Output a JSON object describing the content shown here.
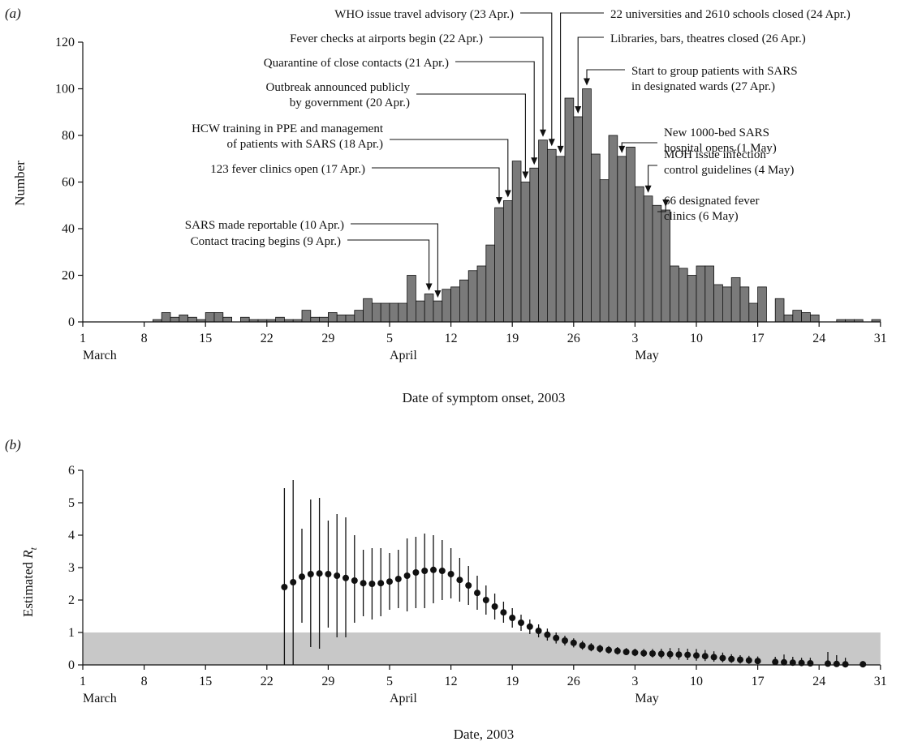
{
  "chart_data": [
    {
      "type": "bar",
      "panel_label": "(a)",
      "xlabel": "Date of symptom onset, 2003",
      "ylabel": "Number",
      "ylim": [
        0,
        120
      ],
      "yticks": [
        0,
        20,
        40,
        60,
        80,
        100,
        120
      ],
      "x_tick_labels": [
        "1",
        "8",
        "15",
        "22",
        "29",
        "5",
        "12",
        "19",
        "26",
        "3",
        "10",
        "17",
        "24",
        "31"
      ],
      "month_labels": [
        {
          "text": "March",
          "tick": 0
        },
        {
          "text": "April",
          "tick": 5
        },
        {
          "text": "May",
          "tick": 9
        }
      ],
      "x_start_date": "2003-03-01",
      "bar_color": "#7a7a7a",
      "series": [
        {
          "values": [
            0,
            0,
            0,
            0,
            0,
            0,
            0,
            0,
            1,
            4,
            2,
            3,
            2,
            1,
            4,
            4,
            2,
            0,
            2,
            1,
            1,
            1,
            2,
            1,
            1,
            5,
            2,
            2,
            4,
            3,
            3,
            5,
            10,
            8,
            8,
            8,
            8,
            20,
            9,
            12,
            9,
            14,
            15,
            18,
            22,
            24,
            33,
            49,
            52,
            69,
            60,
            66,
            78,
            74,
            71,
            96,
            88,
            100,
            72,
            61,
            80,
            71,
            75,
            58,
            54,
            50,
            48,
            24,
            23,
            20,
            24,
            24,
            16,
            15,
            19,
            15,
            8,
            15,
            0,
            10,
            3,
            5,
            4,
            3,
            0,
            0,
            1,
            1,
            1,
            0,
            1,
            0
          ]
        }
      ],
      "annotations": [
        {
          "lines": [
            "WHO issue travel advisory (23 Apr.)"
          ],
          "date": "2003-04-23"
        },
        {
          "lines": [
            "22 universities and 2610 schools closed (24 Apr.)"
          ],
          "date": "2003-04-24"
        },
        {
          "lines": [
            "Fever checks at airports begin (22 Apr.)"
          ],
          "date": "2003-04-22"
        },
        {
          "lines": [
            "Libraries, bars, theatres closed (26 Apr.)"
          ],
          "date": "2003-04-26"
        },
        {
          "lines": [
            "Quarantine of close contacts (21 Apr.)"
          ],
          "date": "2003-04-21"
        },
        {
          "lines": [
            "Start to group patients with SARS",
            "in designated wards (27 Apr.)"
          ],
          "date": "2003-04-27"
        },
        {
          "lines": [
            "Outbreak announced publicly",
            "by government (20 Apr.)"
          ],
          "date": "2003-04-20"
        },
        {
          "lines": [
            "New 1000-bed SARS",
            "hospital opens (1 May)"
          ],
          "date": "2003-05-01"
        },
        {
          "lines": [
            "HCW training in PPE and management",
            "of patients with SARS (18 Apr.)"
          ],
          "date": "2003-04-18"
        },
        {
          "lines": [
            "MOH issue infection",
            "control guidelines (4 May)"
          ],
          "date": "2003-05-04"
        },
        {
          "lines": [
            "123 fever clinics open (17 Apr.)"
          ],
          "date": "2003-04-17"
        },
        {
          "lines": [
            "66 designated fever",
            "clinics (6 May)"
          ],
          "date": "2003-05-06"
        },
        {
          "lines": [
            "SARS made reportable (10 Apr.)"
          ],
          "date": "2003-04-10"
        },
        {
          "lines": [
            "Contact tracing begins (9 Apr.)"
          ],
          "date": "2003-04-09"
        }
      ]
    },
    {
      "type": "scatter",
      "panel_label": "(b)",
      "xlabel": "Date, 2003",
      "ylabel_main": "Estimated ",
      "ylabel_sym": "R",
      "ylabel_sub": "t",
      "ylim": [
        0,
        6
      ],
      "yticks": [
        0,
        1,
        2,
        3,
        4,
        5,
        6
      ],
      "x_tick_labels": [
        "1",
        "8",
        "15",
        "22",
        "29",
        "5",
        "12",
        "19",
        "26",
        "3",
        "10",
        "17",
        "24",
        "31"
      ],
      "month_labels": [
        {
          "text": "March",
          "tick": 0
        },
        {
          "text": "April",
          "tick": 5
        },
        {
          "text": "May",
          "tick": 9
        }
      ],
      "x_start_date": "2003-03-01",
      "shaded_band": {
        "y0": 0,
        "y1": 1,
        "color": "#c8c8c8"
      },
      "points": [
        {
          "date": "2003-03-24",
          "y": 2.4,
          "lo": 0.0,
          "hi": 5.45
        },
        {
          "date": "2003-03-25",
          "y": 2.55,
          "lo": 0.0,
          "hi": 5.7
        },
        {
          "date": "2003-03-26",
          "y": 2.72,
          "lo": 1.3,
          "hi": 4.2
        },
        {
          "date": "2003-03-27",
          "y": 2.8,
          "lo": 0.55,
          "hi": 5.1
        },
        {
          "date": "2003-03-28",
          "y": 2.82,
          "lo": 0.5,
          "hi": 5.15
        },
        {
          "date": "2003-03-29",
          "y": 2.8,
          "lo": 1.15,
          "hi": 4.45
        },
        {
          "date": "2003-03-30",
          "y": 2.75,
          "lo": 0.85,
          "hi": 4.65
        },
        {
          "date": "2003-03-31",
          "y": 2.68,
          "lo": 0.85,
          "hi": 4.55
        },
        {
          "date": "2003-04-01",
          "y": 2.6,
          "lo": 1.3,
          "hi": 4.0
        },
        {
          "date": "2003-04-02",
          "y": 2.52,
          "lo": 1.5,
          "hi": 3.55
        },
        {
          "date": "2003-04-03",
          "y": 2.5,
          "lo": 1.4,
          "hi": 3.6
        },
        {
          "date": "2003-04-04",
          "y": 2.52,
          "lo": 1.5,
          "hi": 3.6
        },
        {
          "date": "2003-04-05",
          "y": 2.57,
          "lo": 1.7,
          "hi": 3.45
        },
        {
          "date": "2003-04-06",
          "y": 2.65,
          "lo": 1.75,
          "hi": 3.55
        },
        {
          "date": "2003-04-07",
          "y": 2.75,
          "lo": 1.65,
          "hi": 3.9
        },
        {
          "date": "2003-04-08",
          "y": 2.85,
          "lo": 1.75,
          "hi": 3.95
        },
        {
          "date": "2003-04-09",
          "y": 2.9,
          "lo": 1.75,
          "hi": 4.05
        },
        {
          "date": "2003-04-10",
          "y": 2.93,
          "lo": 1.9,
          "hi": 4.0
        },
        {
          "date": "2003-04-11",
          "y": 2.9,
          "lo": 2.0,
          "hi": 3.85
        },
        {
          "date": "2003-04-12",
          "y": 2.8,
          "lo": 2.05,
          "hi": 3.6
        },
        {
          "date": "2003-04-13",
          "y": 2.62,
          "lo": 1.95,
          "hi": 3.3
        },
        {
          "date": "2003-04-14",
          "y": 2.45,
          "lo": 1.85,
          "hi": 3.05
        },
        {
          "date": "2003-04-15",
          "y": 2.22,
          "lo": 1.7,
          "hi": 2.75
        },
        {
          "date": "2003-04-16",
          "y": 2.0,
          "lo": 1.55,
          "hi": 2.45
        },
        {
          "date": "2003-04-17",
          "y": 1.8,
          "lo": 1.4,
          "hi": 2.2
        },
        {
          "date": "2003-04-18",
          "y": 1.62,
          "lo": 1.3,
          "hi": 1.95
        },
        {
          "date": "2003-04-19",
          "y": 1.45,
          "lo": 1.15,
          "hi": 1.75
        },
        {
          "date": "2003-04-20",
          "y": 1.3,
          "lo": 1.05,
          "hi": 1.55
        },
        {
          "date": "2003-04-21",
          "y": 1.18,
          "lo": 0.95,
          "hi": 1.4
        },
        {
          "date": "2003-04-22",
          "y": 1.05,
          "lo": 0.85,
          "hi": 1.25
        },
        {
          "date": "2003-04-23",
          "y": 0.93,
          "lo": 0.75,
          "hi": 1.12
        },
        {
          "date": "2003-04-24",
          "y": 0.83,
          "lo": 0.66,
          "hi": 1.0
        },
        {
          "date": "2003-04-25",
          "y": 0.75,
          "lo": 0.6,
          "hi": 0.9
        },
        {
          "date": "2003-04-26",
          "y": 0.68,
          "lo": 0.54,
          "hi": 0.82
        },
        {
          "date": "2003-04-27",
          "y": 0.6,
          "lo": 0.47,
          "hi": 0.74
        },
        {
          "date": "2003-04-28",
          "y": 0.54,
          "lo": 0.42,
          "hi": 0.67
        },
        {
          "date": "2003-04-29",
          "y": 0.5,
          "lo": 0.38,
          "hi": 0.62
        },
        {
          "date": "2003-04-30",
          "y": 0.46,
          "lo": 0.35,
          "hi": 0.58
        },
        {
          "date": "2003-05-01",
          "y": 0.43,
          "lo": 0.32,
          "hi": 0.55
        },
        {
          "date": "2003-05-02",
          "y": 0.4,
          "lo": 0.3,
          "hi": 0.52
        },
        {
          "date": "2003-05-03",
          "y": 0.38,
          "lo": 0.27,
          "hi": 0.5
        },
        {
          "date": "2003-05-04",
          "y": 0.36,
          "lo": 0.25,
          "hi": 0.49
        },
        {
          "date": "2003-05-05",
          "y": 0.35,
          "lo": 0.23,
          "hi": 0.49
        },
        {
          "date": "2003-05-06",
          "y": 0.34,
          "lo": 0.2,
          "hi": 0.5
        },
        {
          "date": "2003-05-07",
          "y": 0.33,
          "lo": 0.18,
          "hi": 0.52
        },
        {
          "date": "2003-05-08",
          "y": 0.32,
          "lo": 0.16,
          "hi": 0.52
        },
        {
          "date": "2003-05-09",
          "y": 0.31,
          "lo": 0.15,
          "hi": 0.5
        },
        {
          "date": "2003-05-10",
          "y": 0.29,
          "lo": 0.13,
          "hi": 0.49
        },
        {
          "date": "2003-05-11",
          "y": 0.27,
          "lo": 0.12,
          "hi": 0.46
        },
        {
          "date": "2003-05-12",
          "y": 0.24,
          "lo": 0.1,
          "hi": 0.42
        },
        {
          "date": "2003-05-13",
          "y": 0.21,
          "lo": 0.08,
          "hi": 0.38
        },
        {
          "date": "2003-05-14",
          "y": 0.18,
          "lo": 0.06,
          "hi": 0.33
        },
        {
          "date": "2003-05-15",
          "y": 0.16,
          "lo": 0.04,
          "hi": 0.3
        },
        {
          "date": "2003-05-16",
          "y": 0.14,
          "lo": 0.03,
          "hi": 0.28
        },
        {
          "date": "2003-05-17",
          "y": 0.12,
          "lo": 0.02,
          "hi": 0.26
        },
        {
          "date": "2003-05-19",
          "y": 0.09,
          "lo": 0.0,
          "hi": 0.25
        },
        {
          "date": "2003-05-20",
          "y": 0.08,
          "lo": 0.0,
          "hi": 0.32
        },
        {
          "date": "2003-05-21",
          "y": 0.07,
          "lo": 0.0,
          "hi": 0.25
        },
        {
          "date": "2003-05-22",
          "y": 0.06,
          "lo": 0.0,
          "hi": 0.22
        },
        {
          "date": "2003-05-23",
          "y": 0.05,
          "lo": 0.0,
          "hi": 0.22
        },
        {
          "date": "2003-05-25",
          "y": 0.04,
          "lo": 0.0,
          "hi": 0.4
        },
        {
          "date": "2003-05-26",
          "y": 0.03,
          "lo": 0.0,
          "hi": 0.3
        },
        {
          "date": "2003-05-27",
          "y": 0.02,
          "lo": 0.0,
          "hi": 0.22
        },
        {
          "date": "2003-05-29",
          "y": 0.02,
          "lo": 0.0,
          "hi": 0.12
        }
      ]
    }
  ]
}
